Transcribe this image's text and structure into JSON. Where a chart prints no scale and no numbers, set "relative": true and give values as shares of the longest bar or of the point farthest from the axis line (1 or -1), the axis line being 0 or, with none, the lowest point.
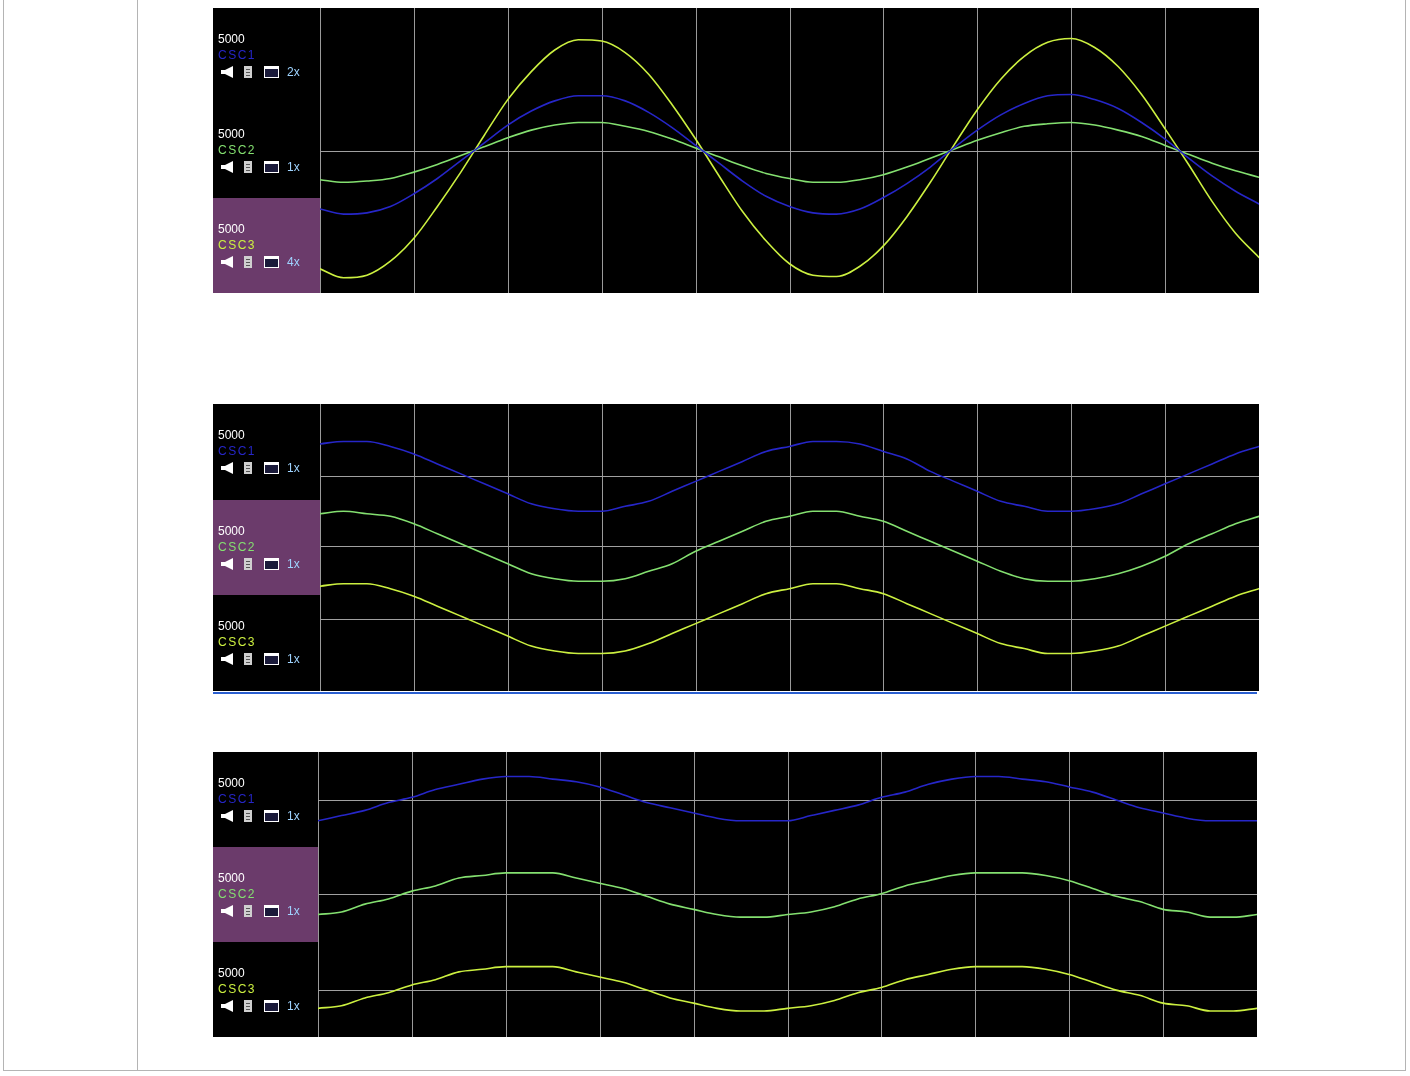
{
  "chart_data": [
    {
      "type": "line",
      "relative": true,
      "legend": "left",
      "grid": "x",
      "tick_labels": false,
      "categories": [
        null,
        null,
        null,
        null,
        null,
        null,
        null,
        null,
        null,
        null,
        null,
        null,
        null,
        null,
        null,
        null,
        null,
        null,
        null,
        null,
        null,
        null,
        null,
        null,
        null,
        null,
        null,
        null,
        null,
        null,
        null,
        null,
        null,
        null,
        null,
        null,
        null,
        null,
        null,
        null,
        null
      ],
      "series": [
        {
          "name": "CSC1",
          "color": "#2626c8",
          "values": [
            -0.46,
            -0.5,
            -0.49,
            -0.44,
            -0.34,
            -0.22,
            -0.08,
            0.06,
            0.2,
            0.31,
            0.39,
            0.43,
            0.43,
            0.39,
            0.3,
            0.18,
            0.04,
            -0.1,
            -0.24,
            -0.36,
            -0.44,
            -0.49,
            -0.5,
            -0.46,
            -0.37,
            -0.26,
            -0.13,
            0.02,
            0.16,
            0.28,
            0.37,
            0.43,
            0.44,
            0.4,
            0.33,
            0.22,
            0.09,
            -0.06,
            -0.2,
            -0.32,
            -0.42
          ]
        },
        {
          "name": "CSC2",
          "color": "#84e070",
          "values": [
            -0.23,
            -0.25,
            -0.24,
            -0.22,
            -0.17,
            -0.11,
            -0.04,
            0.03,
            0.1,
            0.16,
            0.2,
            0.22,
            0.22,
            0.19,
            0.15,
            0.09,
            0.02,
            -0.05,
            -0.12,
            -0.18,
            -0.22,
            -0.25,
            -0.25,
            -0.23,
            -0.19,
            -0.13,
            -0.06,
            0.01,
            0.08,
            0.14,
            0.19,
            0.21,
            0.22,
            0.2,
            0.16,
            0.11,
            0.04,
            -0.03,
            -0.1,
            -0.16,
            -0.21
          ]
        },
        {
          "name": "CSC3",
          "color": "#ccf040",
          "values": [
            -0.93,
            -1,
            -0.98,
            -0.87,
            -0.69,
            -0.44,
            -0.17,
            0.12,
            0.4,
            0.62,
            0.79,
            0.87,
            0.86,
            0.77,
            0.6,
            0.36,
            0.09,
            -0.2,
            -0.48,
            -0.71,
            -0.89,
            -0.98,
            -0.99,
            -0.91,
            -0.75,
            -0.52,
            -0.25,
            0.04,
            0.32,
            0.56,
            0.74,
            0.85,
            0.88,
            0.81,
            0.66,
            0.44,
            0.17,
            -0.11,
            -0.4,
            -0.65,
            -0.84
          ]
        }
      ],
      "ref_lines": [
        {
          "axis": "y",
          "value": 0,
          "color": "#a0a0a0"
        }
      ],
      "annotations": [
        "5000",
        "2x",
        "5000",
        "1x",
        "5000",
        "4x"
      ]
    },
    {
      "type": "line",
      "relative": true,
      "legend": "left",
      "grid": "x",
      "tick_labels": false,
      "categories": [
        null,
        null,
        null,
        null,
        null,
        null,
        null,
        null,
        null,
        null,
        null,
        null,
        null,
        null,
        null,
        null,
        null,
        null,
        null,
        null,
        null,
        null,
        null,
        null,
        null,
        null,
        null,
        null,
        null,
        null,
        null,
        null,
        null,
        null,
        null,
        null,
        null,
        null,
        null,
        null,
        null
      ],
      "series": [
        {
          "name": "CSC1",
          "color": "#2626c8",
          "values": [
            0.99,
            1,
            1,
            0.98,
            0.95,
            0.91,
            0.87,
            0.83,
            0.79,
            0.75,
            0.73,
            0.72,
            0.72,
            0.74,
            0.76,
            0.8,
            0.84,
            0.88,
            0.92,
            0.96,
            0.98,
            1,
            1,
            0.99,
            0.96,
            0.93,
            0.88,
            0.84,
            0.8,
            0.76,
            0.74,
            0.72,
            0.72,
            0.73,
            0.75,
            0.79,
            0.83,
            0.87,
            0.91,
            0.95,
            0.98
          ]
        },
        {
          "name": "CSC2",
          "color": "#84e070",
          "values": [
            0.71,
            0.72,
            0.71,
            0.7,
            0.67,
            0.63,
            0.59,
            0.55,
            0.51,
            0.47,
            0.45,
            0.44,
            0.44,
            0.45,
            0.48,
            0.51,
            0.56,
            0.6,
            0.64,
            0.68,
            0.7,
            0.72,
            0.72,
            0.7,
            0.68,
            0.64,
            0.6,
            0.56,
            0.52,
            0.48,
            0.45,
            0.44,
            0.44,
            0.45,
            0.47,
            0.5,
            0.54,
            0.59,
            0.63,
            0.67,
            0.7
          ]
        },
        {
          "name": "CSC3",
          "color": "#ccf040",
          "values": [
            0.42,
            0.43,
            0.43,
            0.41,
            0.38,
            0.34,
            0.3,
            0.26,
            0.22,
            0.18,
            0.16,
            0.15,
            0.15,
            0.16,
            0.19,
            0.23,
            0.27,
            0.31,
            0.35,
            0.39,
            0.41,
            0.43,
            0.43,
            0.41,
            0.39,
            0.35,
            0.31,
            0.27,
            0.23,
            0.19,
            0.17,
            0.15,
            0.15,
            0.16,
            0.18,
            0.22,
            0.26,
            0.3,
            0.34,
            0.38,
            0.41
          ]
        }
      ],
      "ref_lines": [
        {
          "axis": "y",
          "value": 0.86,
          "color": "#a0a0a0"
        },
        {
          "axis": "y",
          "value": 0.58,
          "color": "#a0a0a0"
        },
        {
          "axis": "y",
          "value": 0.29,
          "color": "#a0a0a0"
        }
      ],
      "annotations": [
        "5000",
        "1x",
        "5000",
        "1x",
        "5000",
        "1x"
      ]
    },
    {
      "type": "line",
      "relative": true,
      "legend": "left",
      "grid": "x",
      "tick_labels": false,
      "categories": [
        null,
        null,
        null,
        null,
        null,
        null,
        null,
        null,
        null,
        null,
        null,
        null,
        null,
        null,
        null,
        null,
        null,
        null,
        null,
        null,
        null,
        null,
        null,
        null,
        null,
        null,
        null,
        null,
        null,
        null,
        null,
        null,
        null,
        null,
        null,
        null,
        null,
        null,
        null,
        null,
        null
      ],
      "series": [
        {
          "name": "CSC1",
          "color": "#2626c8",
          "values": [
            0.83,
            0.85,
            0.87,
            0.9,
            0.92,
            0.95,
            0.97,
            0.99,
            1,
            1,
            0.99,
            0.98,
            0.96,
            0.93,
            0.9,
            0.88,
            0.86,
            0.84,
            0.83,
            0.83,
            0.83,
            0.85,
            0.87,
            0.89,
            0.92,
            0.94,
            0.97,
            0.99,
            1,
            1,
            0.99,
            0.98,
            0.96,
            0.94,
            0.91,
            0.88,
            0.86,
            0.84,
            0.83,
            0.83,
            0.83
          ]
        },
        {
          "name": "CSC2",
          "color": "#84e070",
          "values": [
            0.47,
            0.48,
            0.51,
            0.53,
            0.56,
            0.58,
            0.61,
            0.62,
            0.63,
            0.63,
            0.63,
            0.61,
            0.59,
            0.57,
            0.54,
            0.51,
            0.49,
            0.47,
            0.46,
            0.46,
            0.47,
            0.48,
            0.5,
            0.53,
            0.55,
            0.58,
            0.6,
            0.62,
            0.63,
            0.63,
            0.63,
            0.62,
            0.6,
            0.57,
            0.54,
            0.52,
            0.49,
            0.48,
            0.46,
            0.46,
            0.47
          ]
        },
        {
          "name": "CSC3",
          "color": "#ccf040",
          "values": [
            0.11,
            0.12,
            0.15,
            0.17,
            0.2,
            0.22,
            0.25,
            0.26,
            0.27,
            0.27,
            0.27,
            0.25,
            0.23,
            0.21,
            0.18,
            0.15,
            0.13,
            0.11,
            0.1,
            0.1,
            0.11,
            0.12,
            0.14,
            0.17,
            0.19,
            0.22,
            0.24,
            0.26,
            0.27,
            0.27,
            0.27,
            0.26,
            0.24,
            0.21,
            0.18,
            0.16,
            0.13,
            0.12,
            0.1,
            0.1,
            0.11
          ]
        }
      ],
      "ref_lines": [
        {
          "axis": "y",
          "value": 0.91,
          "color": "#a0a0a0"
        },
        {
          "axis": "y",
          "value": 0.55,
          "color": "#a0a0a0"
        },
        {
          "axis": "y",
          "value": 0.18,
          "color": "#a0a0a0"
        }
      ],
      "annotations": [
        "5000",
        "1x",
        "5000",
        "1x",
        "5000",
        "1x"
      ]
    }
  ]
}
